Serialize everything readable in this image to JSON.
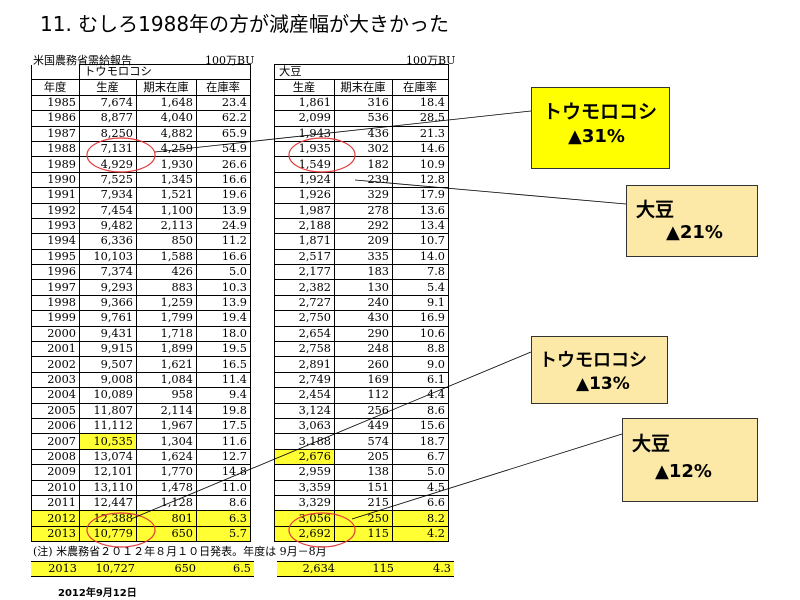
{
  "title": "11. むしろ1988年の方が減産幅が大きかった",
  "source_label": "米国農務省需給報告",
  "unit_corn": "100万BU",
  "unit_soy": "100万BU",
  "group_corn": "トウモロコシ",
  "group_soy": "大豆",
  "headers": {
    "year": "年度",
    "corn_prod": "生産",
    "corn_stock": "期末在庫",
    "corn_ratio": "在庫率",
    "soy_prod": "生産",
    "soy_stock": "期末在庫",
    "soy_ratio": "在庫率"
  },
  "rows": [
    [
      "1985",
      "7,674",
      "1,648",
      "23.4",
      "1,861",
      "316",
      "18.4"
    ],
    [
      "1986",
      "8,877",
      "4,040",
      "62.2",
      "2,099",
      "536",
      "28.5"
    ],
    [
      "1987",
      "8,250",
      "4,882",
      "65.9",
      "1,943",
      "436",
      "21.3"
    ],
    [
      "1988",
      "7,131",
      "4,259",
      "54.9",
      "1,935",
      "302",
      "14.6"
    ],
    [
      "1989",
      "4,929",
      "1,930",
      "26.6",
      "1,549",
      "182",
      "10.9"
    ],
    [
      "1990",
      "7,525",
      "1,345",
      "16.6",
      "1,924",
      "239",
      "12.8"
    ],
    [
      "1991",
      "7,934",
      "1,521",
      "19.6",
      "1,926",
      "329",
      "17.9"
    ],
    [
      "1992",
      "7,454",
      "1,100",
      "13.9",
      "1,987",
      "278",
      "13.6"
    ],
    [
      "1993",
      "9,482",
      "2,113",
      "24.9",
      "2,188",
      "292",
      "13.4"
    ],
    [
      "1994",
      "6,336",
      "850",
      "11.2",
      "1,871",
      "209",
      "10.7"
    ],
    [
      "1995",
      "10,103",
      "1,588",
      "16.6",
      "2,517",
      "335",
      "14.0"
    ],
    [
      "1996",
      "7,374",
      "426",
      "5.0",
      "2,177",
      "183",
      "7.8"
    ],
    [
      "1997",
      "9,293",
      "883",
      "10.3",
      "2,382",
      "130",
      "5.4"
    ],
    [
      "1998",
      "9,366",
      "1,259",
      "13.9",
      "2,727",
      "240",
      "9.1"
    ],
    [
      "1999",
      "9,761",
      "1,799",
      "19.4",
      "2,750",
      "430",
      "16.9"
    ],
    [
      "2000",
      "9,431",
      "1,718",
      "18.0",
      "2,654",
      "290",
      "10.6"
    ],
    [
      "2001",
      "9,915",
      "1,899",
      "19.5",
      "2,758",
      "248",
      "8.8"
    ],
    [
      "2002",
      "9,507",
      "1,621",
      "16.5",
      "2,891",
      "260",
      "9.0"
    ],
    [
      "2003",
      "9,008",
      "1,084",
      "11.4",
      "2,749",
      "169",
      "6.1"
    ],
    [
      "2004",
      "10,089",
      "958",
      "9.4",
      "2,454",
      "112",
      "4.4"
    ],
    [
      "2005",
      "11,807",
      "2,114",
      "19.8",
      "3,124",
      "256",
      "8.6"
    ],
    [
      "2006",
      "11,112",
      "1,967",
      "17.5",
      "3,063",
      "449",
      "15.6"
    ],
    [
      "2007",
      "10,535",
      "1,304",
      "11.6",
      "3,188",
      "574",
      "18.7"
    ],
    [
      "2008",
      "13,074",
      "1,624",
      "12.7",
      "2,676",
      "205",
      "6.7"
    ],
    [
      "2009",
      "12,101",
      "1,770",
      "14.8",
      "2,959",
      "138",
      "5.0"
    ],
    [
      "2010",
      "13,110",
      "1,478",
      "11.0",
      "3,359",
      "151",
      "4.5"
    ],
    [
      "2011",
      "12,447",
      "1,128",
      "8.6",
      "3,329",
      "215",
      "6.6"
    ],
    [
      "2012",
      "12,388",
      "801",
      "6.3",
      "3,056",
      "250",
      "8.2"
    ],
    [
      "2013",
      "10,779",
      "650",
      "5.7",
      "2,692",
      "115",
      "4.2"
    ]
  ],
  "highlight_colors": {
    "yellow": "#ffff33",
    "callout_yellow": "#ffff00",
    "callout_beige": "#fce9a8",
    "circle": "#e23b3b"
  },
  "note": "(注) 米農務省２０１２年８月１０日発表。年度は 9月－8月",
  "extra_row": [
    "2013",
    "10,727",
    "650",
    "6.5",
    "2,634",
    "115",
    "4.3"
  ],
  "date": "2012年9月12日",
  "callouts": [
    {
      "line1": "トウモロコシ",
      "line2": "▲31%"
    },
    {
      "line1": "大豆",
      "line2": "▲21%"
    },
    {
      "line1": "トウモロコシ",
      "line2": "▲13%"
    },
    {
      "line1": "大豆",
      "line2": "▲12%"
    }
  ]
}
